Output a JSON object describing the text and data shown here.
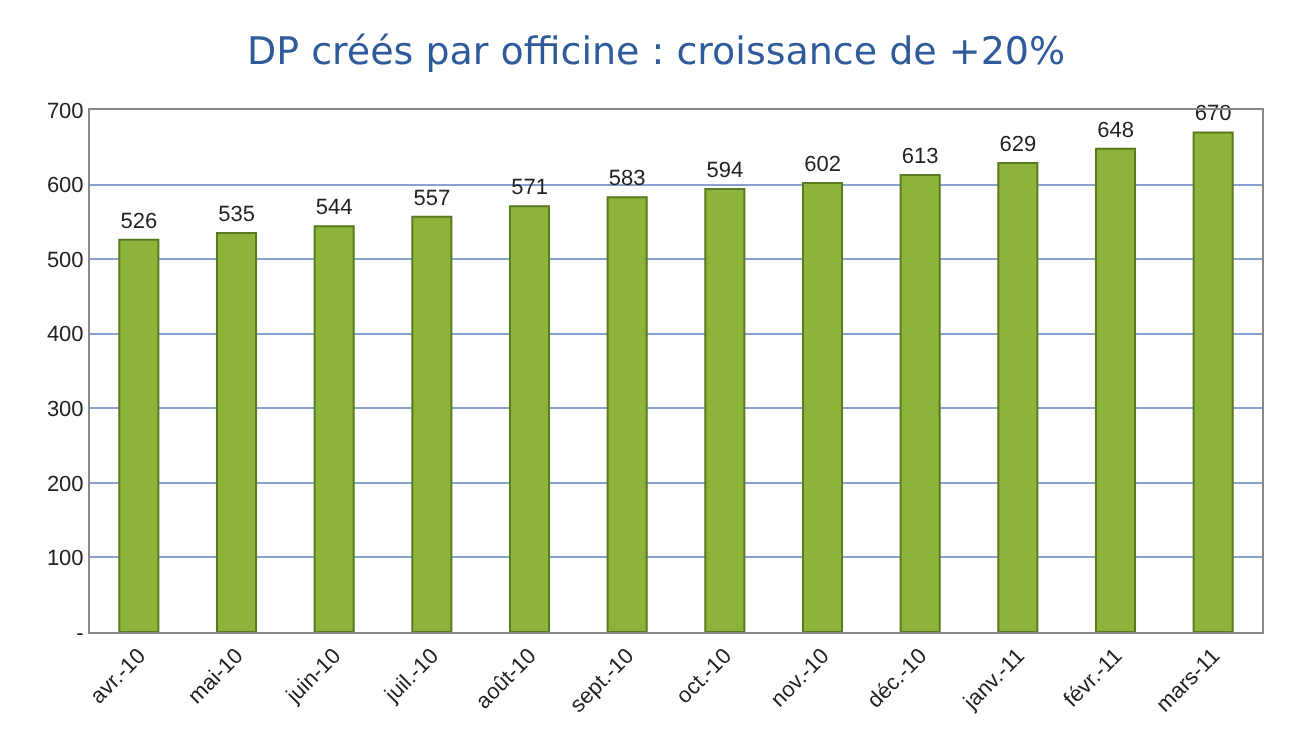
{
  "chart_data": {
    "type": "bar",
    "title": "DP créés par officine : croissance de +20%",
    "categories": [
      "avr.-10",
      "mai-10",
      "juin-10",
      "juil.-10",
      "août-10",
      "sept.-10",
      "oct.-10",
      "nov.-10",
      "déc.-10",
      "janv.-11",
      "févr.-11",
      "mars-11"
    ],
    "values": [
      526,
      535,
      544,
      557,
      571,
      583,
      594,
      602,
      613,
      629,
      648,
      670
    ],
    "color": "#8cb33a",
    "ylim": [
      0,
      700
    ],
    "yticks": [
      {
        "value": 0,
        "label": "-"
      },
      100,
      200,
      300,
      400,
      500,
      600,
      700
    ],
    "grid": "y",
    "data_labels": true
  }
}
